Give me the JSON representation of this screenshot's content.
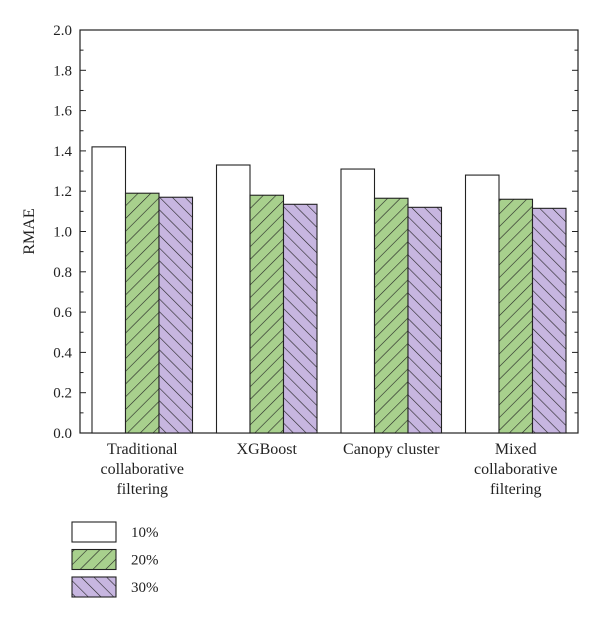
{
  "chart_data": {
    "type": "bar",
    "categories": [
      [
        "Traditional",
        "collaborative",
        "filtering"
      ],
      [
        "XGBoost"
      ],
      [
        "Canopy cluster"
      ],
      [
        "Mixed",
        "collaborative",
        "filtering"
      ]
    ],
    "series": [
      {
        "name": "10%",
        "values": [
          1.42,
          1.33,
          1.31,
          1.28
        ],
        "fill": "#ffffff",
        "hatch": "none"
      },
      {
        "name": "20%",
        "values": [
          1.19,
          1.18,
          1.165,
          1.16
        ],
        "fill": "#a8d08d",
        "hatch": "forward"
      },
      {
        "name": "30%",
        "values": [
          1.17,
          1.135,
          1.12,
          1.115
        ],
        "fill": "#c7b6e0",
        "hatch": "backward"
      }
    ],
    "title": "",
    "xlabel": "",
    "ylabel": "RMAE",
    "ylim": [
      0,
      2.0
    ],
    "yticks": [
      "0.0",
      "0.2",
      "0.4",
      "0.6",
      "0.8",
      "1.0",
      "1.2",
      "1.4",
      "1.6",
      "1.8",
      "2.0"
    ],
    "grid": false,
    "legend": "bottom-left"
  }
}
